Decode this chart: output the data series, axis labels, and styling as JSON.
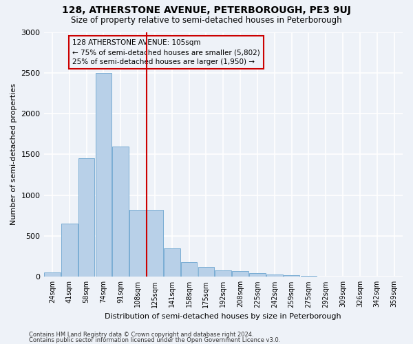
{
  "title": "128, ATHERSTONE AVENUE, PETERBOROUGH, PE3 9UJ",
  "subtitle": "Size of property relative to semi-detached houses in Peterborough",
  "xlabel": "Distribution of semi-detached houses by size in Peterborough",
  "ylabel": "Number of semi-detached properties",
  "categories": [
    "24sqm",
    "41sqm",
    "58sqm",
    "74sqm",
    "91sqm",
    "108sqm",
    "125sqm",
    "141sqm",
    "158sqm",
    "175sqm",
    "192sqm",
    "208sqm",
    "225sqm",
    "242sqm",
    "259sqm",
    "275sqm",
    "292sqm",
    "309sqm",
    "326sqm",
    "342sqm",
    "359sqm"
  ],
  "values": [
    50,
    650,
    1450,
    2500,
    1600,
    820,
    820,
    350,
    180,
    120,
    80,
    70,
    45,
    30,
    20,
    10,
    5,
    3,
    2,
    1,
    1
  ],
  "bar_color": "#b8d0e8",
  "bar_edge_color": "#7aadd4",
  "annotation_text": "128 ATHERSTONE AVENUE: 105sqm\n← 75% of semi-detached houses are smaller (5,802)\n25% of semi-detached houses are larger (1,950) →",
  "vline_x": 5.5,
  "box_color": "#cc0000",
  "ylim": [
    0,
    3000
  ],
  "yticks": [
    0,
    500,
    1000,
    1500,
    2000,
    2500,
    3000
  ],
  "footnote1": "Contains HM Land Registry data © Crown copyright and database right 2024.",
  "footnote2": "Contains public sector information licensed under the Open Government Licence v3.0.",
  "background_color": "#eef2f8",
  "grid_color": "#ffffff"
}
